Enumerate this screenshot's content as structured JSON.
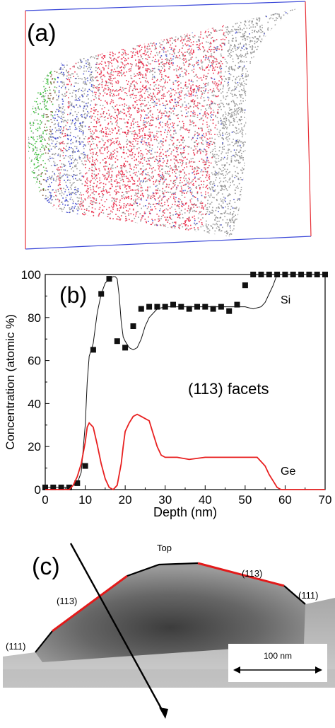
{
  "panel_a": {
    "label": "(a)",
    "colors": {
      "box_left": "#e8343a",
      "box_top": "#3b48d8",
      "si": "#8a8a8a",
      "ge": "#e81a3a",
      "b": "#2630c8",
      "o": "#22b522"
    }
  },
  "panel_b": {
    "label": "(b)",
    "annotation": "(113) facets",
    "chart_data": {
      "type": "line",
      "xlabel": "Depth (nm)",
      "ylabel": "Concentration (atomic %)",
      "xlim": [
        0,
        70
      ],
      "ylim": [
        0,
        100
      ],
      "x_ticks": [
        "0",
        "10",
        "20",
        "30",
        "40",
        "50",
        "60",
        "70"
      ],
      "y_ticks": [
        "0",
        "20",
        "40",
        "60",
        "80",
        "100"
      ],
      "series": [
        {
          "name": "Si",
          "color": "#111111",
          "marker": "square",
          "markers_x": [
            0,
            2,
            4,
            6,
            8,
            10,
            12,
            14,
            16,
            18,
            20,
            22,
            24,
            26,
            28,
            30,
            32,
            34,
            36,
            38,
            40,
            42,
            44,
            46,
            48,
            50,
            52,
            54,
            56,
            58,
            60,
            62,
            64,
            66,
            68,
            70
          ],
          "markers_y": [
            1,
            1,
            1,
            1,
            3,
            11,
            65,
            91,
            98,
            69,
            66,
            76,
            84,
            85,
            85,
            85,
            86,
            85,
            84,
            85,
            85,
            84,
            85,
            83,
            86,
            95,
            100,
            100,
            100,
            100,
            100,
            100,
            100,
            100,
            100,
            100
          ],
          "line_x": [
            0,
            6,
            8,
            9,
            10,
            10.5,
            11,
            11.5,
            12,
            13,
            14,
            15,
            16,
            17,
            17.5,
            18,
            18.5,
            19,
            19.5,
            20,
            21,
            22,
            23,
            24,
            25,
            26,
            28,
            30,
            35,
            40,
            45,
            50,
            52,
            54,
            55,
            56,
            57,
            58,
            60,
            70
          ],
          "line_y": [
            1,
            1,
            3,
            8,
            30,
            50,
            62,
            65,
            68,
            82,
            91,
            96,
            98,
            99,
            99,
            98,
            90,
            78,
            71,
            69,
            66,
            65,
            66,
            70,
            76,
            80,
            84,
            85,
            85,
            85,
            85,
            85,
            84,
            85,
            87,
            91,
            95,
            100,
            100,
            100
          ]
        },
        {
          "name": "Ge",
          "color": "#e82020",
          "line_x": [
            0,
            6,
            7,
            8,
            9,
            10,
            10.5,
            11,
            12,
            13,
            14,
            15,
            16,
            17,
            18,
            19,
            19.5,
            20,
            21,
            22,
            23,
            24,
            25,
            26,
            27,
            28,
            29,
            30,
            33,
            36,
            40,
            45,
            50,
            52,
            53,
            54,
            55,
            56,
            57,
            58,
            59,
            70
          ],
          "line_y": [
            0,
            0,
            2,
            6,
            12,
            22,
            29,
            31,
            29,
            21,
            12,
            5,
            1,
            0,
            2,
            12,
            20,
            27,
            31,
            34,
            35,
            34,
            33,
            32,
            26,
            20,
            16,
            15,
            15,
            14,
            15,
            15,
            15,
            15,
            15,
            13,
            11,
            7,
            4,
            1,
            0,
            0
          ]
        }
      ],
      "series_labels": [
        "Si",
        "Ge"
      ]
    }
  },
  "panel_c": {
    "label": "(c)",
    "top_label": "Top",
    "label_113_left": "(113)",
    "label_113_right": "(113)",
    "label_111_left": "(111)",
    "label_111_right": "(111)",
    "scale_label": "100 nm"
  }
}
